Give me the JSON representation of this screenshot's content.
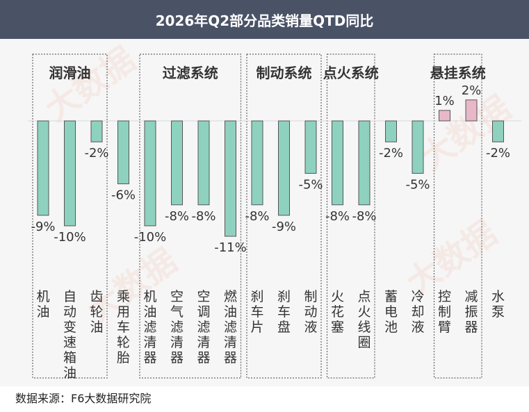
{
  "title": "2026年Q2部分品类销量QTD同比",
  "source": "数据来源：F6大数据研究院",
  "watermark": "大数据",
  "colors": {
    "header_bg": "#4a5266",
    "negative_bar": "#8fd1bf",
    "positive_bar": "#e8b8c8",
    "bar_stroke": "#555555",
    "group_border": "#666666"
  },
  "chart_data": {
    "type": "bar",
    "title": "2026年Q2部分品类销量QTD同比",
    "ylabel": "",
    "xlabel": "",
    "categories": [
      "机油",
      "自动变速箱油",
      "齿轮油",
      "乘用车轮胎",
      "机油滤清器",
      "空气滤清器",
      "空调滤清器",
      "燃油滤清器",
      "刹车片",
      "刹车盘",
      "制动液",
      "火花塞",
      "点火线圈",
      "蓄电池",
      "冷却液",
      "控制臂",
      "减振器",
      "水泵"
    ],
    "values": [
      -9,
      -10,
      -2,
      -6,
      -10,
      -8,
      -8,
      -11,
      -8,
      -9,
      -5,
      -8,
      -8,
      -2,
      -5,
      1,
      2,
      -2
    ],
    "value_labels": [
      "-9%",
      "-10%",
      "-2%",
      "-6%",
      "-10%",
      "-8%",
      "-8%",
      "-11%",
      "-8%",
      "-9%",
      "-5%",
      "-8%",
      "-8%",
      "-2%",
      "-5%",
      "1%",
      "2%",
      "-2%"
    ],
    "groups": [
      {
        "label": "润滑油",
        "from": 0,
        "to": 2
      },
      {
        "label": "过滤系统",
        "from": 4,
        "to": 7
      },
      {
        "label": "制动系统",
        "from": 8,
        "to": 10
      },
      {
        "label": "点火系统",
        "from": 11,
        "to": 12
      },
      {
        "label": "悬挂系统",
        "from": 15,
        "to": 16
      }
    ],
    "ylim": [
      -12,
      3
    ],
    "grid": false,
    "legend": "none"
  }
}
